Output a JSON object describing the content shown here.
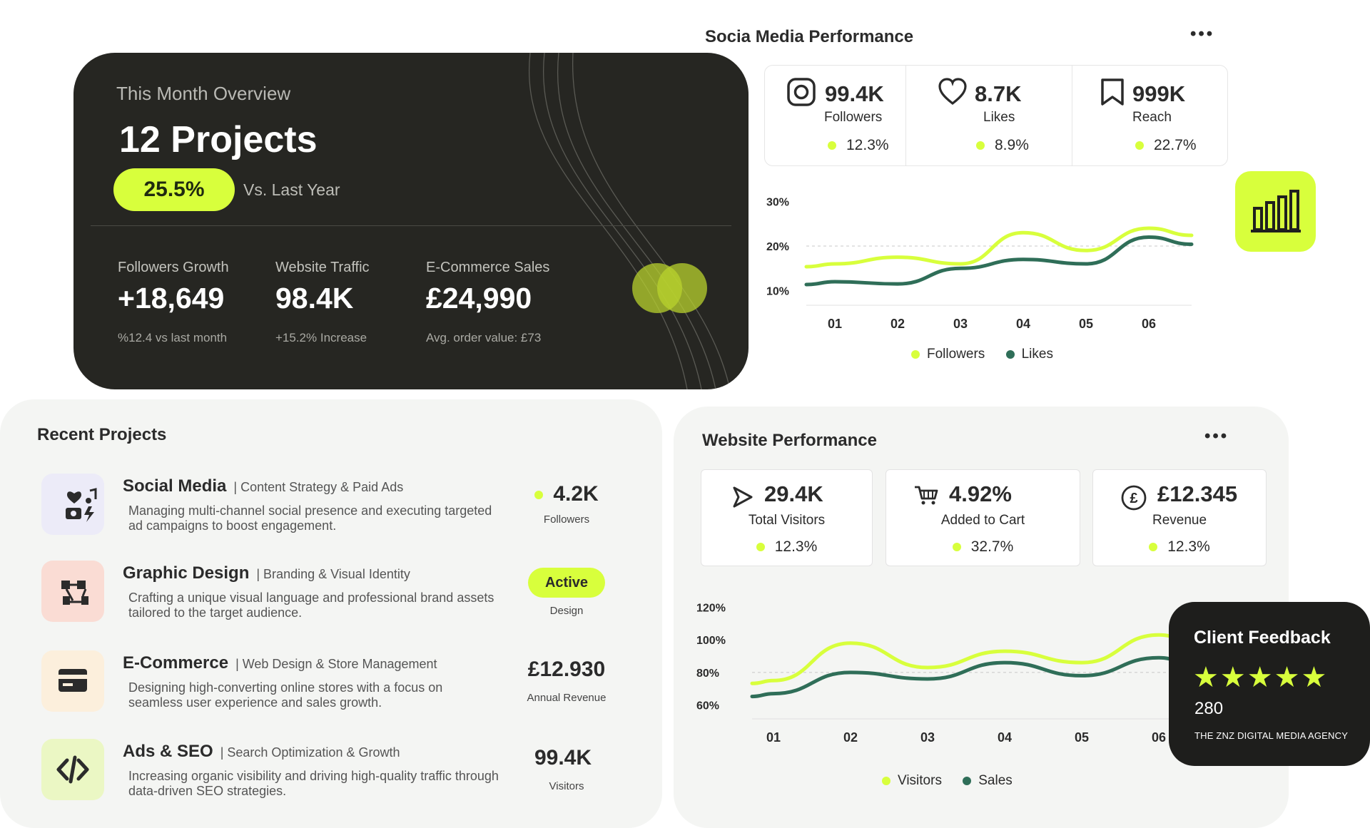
{
  "overview": {
    "title": "This Month Overview",
    "projects": "12 Projects",
    "growth_pct": "25.5%",
    "vs_label": "Vs. Last Year",
    "stats": [
      {
        "label": "Followers Growth",
        "value": "+18,649",
        "sub": "%12.4 vs last month"
      },
      {
        "label": "Website Traffic",
        "value": "98.4K",
        "sub": "+15.2% Increase"
      },
      {
        "label": "E-Commerce Sales",
        "value": "£24,990",
        "sub": "Avg. order value: £73"
      }
    ]
  },
  "social": {
    "title": "Socia Media Performance",
    "menu": "•••",
    "stats": [
      {
        "icon": "instagram-icon",
        "value": "99.4K",
        "label": "Followers",
        "pct": "12.3%"
      },
      {
        "icon": "heart-icon",
        "value": "8.7K",
        "label": "Likes",
        "pct": "8.9%"
      },
      {
        "icon": "bookmark-icon",
        "value": "999K",
        "label": "Reach",
        "pct": "22.7%"
      }
    ],
    "legend": [
      "Followers",
      "Likes"
    ]
  },
  "recent": {
    "title": "Recent Projects",
    "items": [
      {
        "icon": "social-media-icon",
        "name": "Social Media",
        "tag": "| Content Strategy & Paid Ads",
        "desc": "Managing multi-channel social presence and executing targeted ad campaigns to boost engagement.",
        "metric": "4.2K",
        "metric_label": "Followers"
      },
      {
        "icon": "graphic-design-icon",
        "name": "Graphic Design",
        "tag": "| Branding & Visual Identity",
        "desc": "Crafting a unique visual language and professional brand assets tailored to the target audience.",
        "metric": "Active",
        "metric_label": "Design"
      },
      {
        "icon": "ecommerce-icon",
        "name": "E-Commerce",
        "tag": "| Web Design & Store Management",
        "desc": "Designing high-converting online stores with a focus on seamless user experience and sales growth.",
        "metric": "£12.930",
        "metric_label": "Annual Revenue"
      },
      {
        "icon": "code-icon",
        "name": "Ads & SEO",
        "tag": "| Search Optimization & Growth",
        "desc": "Increasing organic visibility and driving high-quality traffic through data-driven SEO strategies.",
        "metric": "99.4K",
        "metric_label": "Visitors"
      }
    ]
  },
  "website": {
    "title": "Website Performance",
    "menu": "•••",
    "stats": [
      {
        "icon": "cursor-icon",
        "value": "29.4K",
        "label": "Total Visitors",
        "pct": "12.3%"
      },
      {
        "icon": "cart-icon",
        "value": "4.92%",
        "label": "Added to Cart",
        "pct": "32.7%"
      },
      {
        "icon": "pound-icon",
        "value": "£12.345",
        "label": "Revenue",
        "pct": "12.3%"
      }
    ],
    "legend": [
      "Visitors",
      "Sales"
    ]
  },
  "feedback": {
    "title": "Client Feedback",
    "stars": "★★★★★",
    "count": "280",
    "agency": "THE ZNZ DIGITAL MEDIA AGENCY"
  },
  "colors": {
    "accent": "#d8ff3c",
    "dark_green": "#2f6e58",
    "dark_bg": "#262622"
  },
  "chart_data": [
    {
      "type": "line",
      "x": [
        "01",
        "02",
        "03",
        "04",
        "05",
        "06"
      ],
      "yticks": [
        "10%",
        "20%",
        "30%"
      ],
      "ylim": [
        8,
        32
      ],
      "series": [
        {
          "name": "Followers",
          "values": [
            16,
            17.5,
            16,
            23,
            19,
            24
          ],
          "color": "#d8ff3c"
        },
        {
          "name": "Likes",
          "values": [
            12,
            11.5,
            15,
            17,
            16,
            22
          ],
          "color": "#2f6e58"
        }
      ]
    },
    {
      "type": "line",
      "x": [
        "01",
        "02",
        "03",
        "04",
        "05",
        "06"
      ],
      "yticks": [
        "60%",
        "80%",
        "100%",
        "120%"
      ],
      "ylim": [
        55,
        125
      ],
      "series": [
        {
          "name": "Visitors",
          "values": [
            75,
            98,
            83,
            93,
            86,
            103
          ],
          "color": "#d8ff3c"
        },
        {
          "name": "Sales",
          "values": [
            67,
            80,
            76,
            86,
            78,
            89
          ],
          "color": "#2f6e58"
        }
      ]
    }
  ]
}
